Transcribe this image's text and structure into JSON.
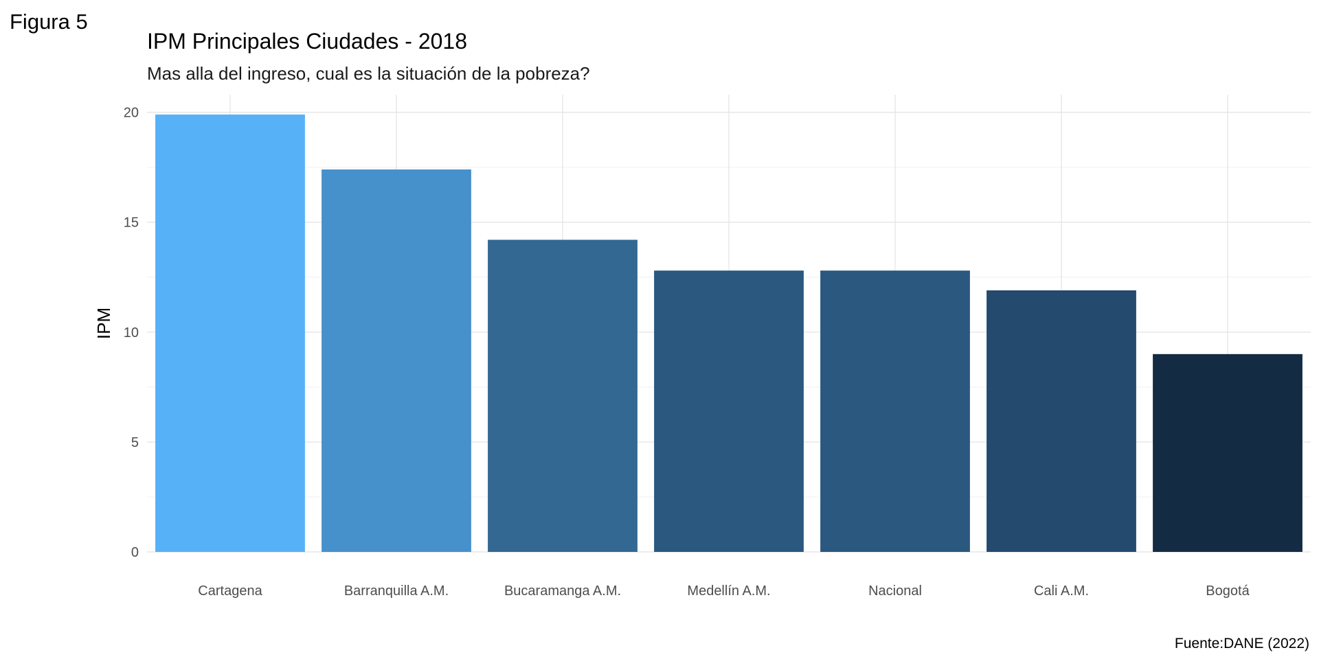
{
  "figure_label": "Figura 5",
  "caption": "Fuente:DANE (2022)",
  "chart_data": {
    "type": "bar",
    "title": "IPM Principales Ciudades - 2018",
    "subtitle": "Mas alla del ingreso, cual es la situación de la pobreza?",
    "xlabel": "",
    "ylabel": "IPM",
    "categories": [
      "Cartagena",
      "Barranquilla A.M.",
      "Bucaramanga A.M.",
      "Medellín A.M.",
      "Nacional",
      "Cali A.M.",
      "Bogotá"
    ],
    "values": [
      19.9,
      17.4,
      14.2,
      12.8,
      12.8,
      11.9,
      9.0
    ],
    "colors": [
      "#56B1F7",
      "#4690CB",
      "#326892",
      "#2A587F",
      "#2A587F",
      "#244A6D",
      "#132B43"
    ],
    "yticks": [
      0,
      5,
      10,
      15,
      20
    ],
    "ylim": [
      0,
      20.8
    ],
    "grid": true,
    "legend": "none"
  }
}
